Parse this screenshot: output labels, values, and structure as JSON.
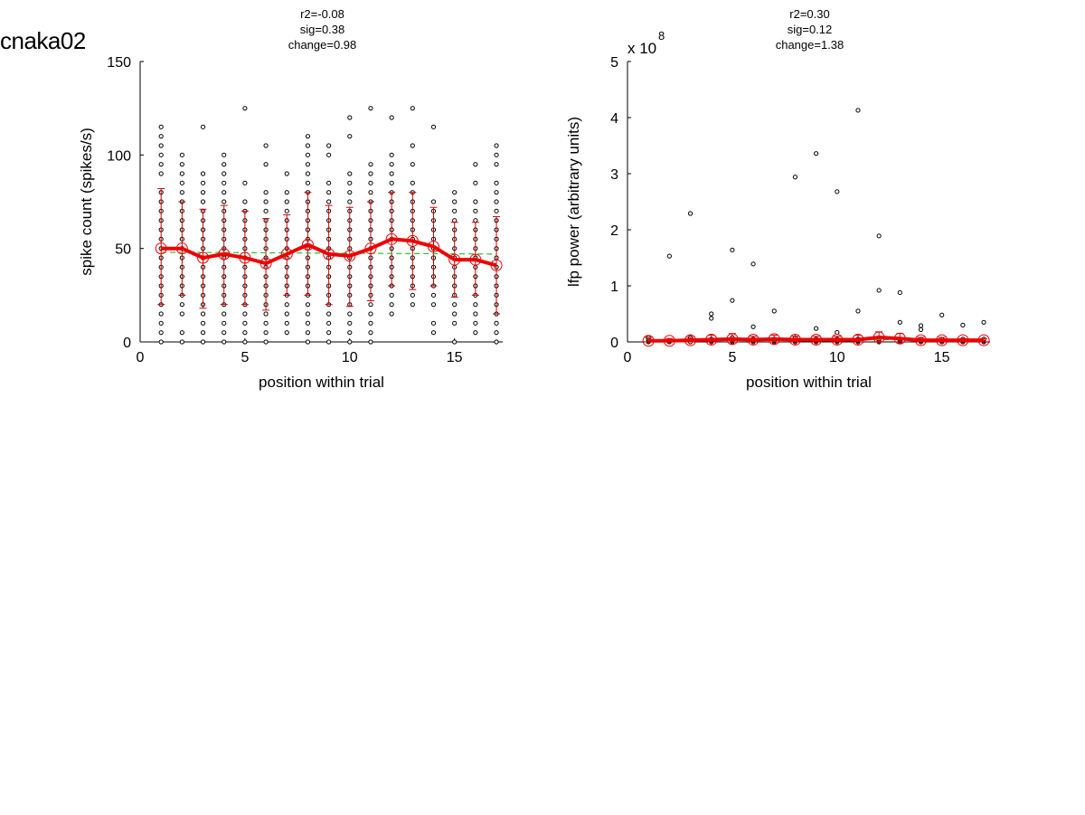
{
  "figure_title": "cnaka02",
  "colors": {
    "mean_line": "#ee0000",
    "error_bar": "#cc0000",
    "trial_point": "#000000",
    "fit_line": "#33bb33"
  },
  "chart_data": [
    {
      "type": "scatter",
      "title_lines": [
        "r2=-0.08",
        "sig=0.38",
        "change=0.98"
      ],
      "xlabel": "position within trial",
      "ylabel": "spike count (spikes/s)",
      "exponent_label": "",
      "exponent_power": "",
      "xlim": [
        0,
        17.3
      ],
      "ylim": [
        0,
        150
      ],
      "xticks": [
        "0",
        "5",
        "10",
        "15"
      ],
      "yticks": [
        "0",
        "50",
        "100",
        "150"
      ],
      "x": [
        1,
        2,
        3,
        4,
        5,
        6,
        7,
        8,
        9,
        10,
        11,
        12,
        13,
        14,
        15,
        16,
        17
      ],
      "mean": [
        50,
        50,
        45,
        47,
        45,
        42,
        47,
        52,
        47,
        46,
        50,
        55,
        54,
        51,
        44,
        44,
        41
      ],
      "error_low": [
        20,
        25,
        18,
        20,
        20,
        17,
        25,
        25,
        20,
        19,
        22,
        30,
        28,
        30,
        24,
        25,
        15
      ],
      "error_high": [
        82,
        75,
        71,
        73,
        70,
        66,
        68,
        80,
        73,
        72,
        75,
        80,
        80,
        72,
        64,
        64,
        67
      ],
      "fit_line": {
        "style": "dashed",
        "y_start": 48,
        "y_end": 47
      },
      "trial_points": [
        [
          0,
          5,
          10,
          15,
          20,
          25,
          30,
          35,
          40,
          45,
          50,
          55,
          60,
          65,
          70,
          75,
          80,
          90,
          95,
          100,
          105,
          110,
          115
        ],
        [
          0,
          5,
          15,
          20,
          25,
          30,
          35,
          40,
          45,
          50,
          55,
          60,
          65,
          70,
          75,
          80,
          85,
          90,
          95,
          100
        ],
        [
          0,
          5,
          10,
          15,
          20,
          25,
          30,
          35,
          40,
          45,
          50,
          55,
          60,
          65,
          70,
          75,
          80,
          85,
          90,
          115
        ],
        [
          0,
          5,
          10,
          15,
          20,
          25,
          30,
          35,
          40,
          45,
          50,
          55,
          60,
          65,
          70,
          75,
          80,
          85,
          90,
          95,
          100
        ],
        [
          0,
          5,
          10,
          15,
          20,
          25,
          30,
          35,
          40,
          45,
          50,
          55,
          60,
          65,
          70,
          75,
          85,
          125
        ],
        [
          0,
          5,
          10,
          15,
          20,
          25,
          30,
          35,
          40,
          45,
          50,
          55,
          60,
          65,
          70,
          75,
          80,
          95,
          105
        ],
        [
          5,
          10,
          15,
          20,
          25,
          30,
          35,
          40,
          45,
          50,
          55,
          60,
          65,
          70,
          75,
          80,
          90
        ],
        [
          0,
          5,
          10,
          15,
          20,
          25,
          30,
          35,
          40,
          45,
          50,
          55,
          60,
          65,
          70,
          75,
          80,
          85,
          90,
          95,
          100,
          105,
          110
        ],
        [
          0,
          5,
          10,
          15,
          20,
          25,
          30,
          35,
          40,
          45,
          50,
          55,
          60,
          65,
          70,
          75,
          80,
          85,
          100,
          105
        ],
        [
          0,
          5,
          10,
          15,
          20,
          25,
          30,
          35,
          40,
          45,
          50,
          55,
          60,
          65,
          70,
          75,
          80,
          85,
          90,
          110,
          120
        ],
        [
          0,
          5,
          10,
          15,
          20,
          25,
          30,
          35,
          40,
          45,
          50,
          55,
          60,
          65,
          70,
          75,
          80,
          85,
          90,
          95,
          125
        ],
        [
          15,
          20,
          25,
          30,
          35,
          40,
          45,
          50,
          55,
          60,
          65,
          70,
          75,
          80,
          85,
          90,
          95,
          100,
          120
        ],
        [
          20,
          25,
          30,
          35,
          40,
          45,
          50,
          55,
          60,
          65,
          70,
          75,
          80,
          85,
          95,
          105,
          125
        ],
        [
          5,
          10,
          20,
          25,
          30,
          35,
          40,
          45,
          50,
          55,
          60,
          65,
          70,
          75,
          115
        ],
        [
          0,
          10,
          15,
          20,
          25,
          30,
          35,
          40,
          45,
          50,
          55,
          60,
          65,
          70,
          75,
          80
        ],
        [
          5,
          10,
          15,
          20,
          25,
          30,
          35,
          40,
          45,
          50,
          55,
          60,
          65,
          70,
          75,
          85,
          95
        ],
        [
          0,
          5,
          10,
          15,
          20,
          25,
          30,
          35,
          40,
          45,
          50,
          55,
          60,
          65,
          70,
          75,
          80,
          85,
          95,
          100,
          105
        ]
      ]
    },
    {
      "type": "scatter",
      "title_lines": [
        "r2=0.30",
        "sig=0.12",
        "change=1.38"
      ],
      "xlabel": "position within trial",
      "ylabel": "lfp power (arbitrary units)",
      "exponent_label": "x 10",
      "exponent_power": "8",
      "xlim": [
        0,
        17.3
      ],
      "ylim": [
        0,
        5
      ],
      "xticks": [
        "0",
        "5",
        "10",
        "15"
      ],
      "yticks": [
        "0",
        "1",
        "2",
        "3",
        "4",
        "5"
      ],
      "x": [
        1,
        2,
        3,
        4,
        5,
        6,
        7,
        8,
        9,
        10,
        11,
        12,
        13,
        14,
        15,
        16,
        17
      ],
      "mean": [
        0.02,
        0.02,
        0.03,
        0.04,
        0.05,
        0.04,
        0.05,
        0.04,
        0.04,
        0.04,
        0.04,
        0.08,
        0.06,
        0.03,
        0.03,
        0.03,
        0.03
      ],
      "error_low": [
        0.0,
        0.0,
        0.0,
        0.0,
        0.0,
        0.0,
        0.0,
        0.0,
        0.0,
        0.0,
        0.0,
        0.0,
        0.0,
        0.0,
        0.0,
        0.0,
        0.0
      ],
      "error_high": [
        0.08,
        0.06,
        0.08,
        0.12,
        0.15,
        0.1,
        0.12,
        0.1,
        0.1,
        0.1,
        0.12,
        0.18,
        0.15,
        0.08,
        0.08,
        0.06,
        0.06
      ],
      "fit_line": {
        "style": "dashed",
        "y_start": 0.02,
        "y_end": 0.05
      },
      "trial_points": [
        [
          0,
          0.02,
          0.05,
          0.08
        ],
        [
          0,
          0.02,
          1.53
        ],
        [
          0,
          0.05,
          0.08,
          2.29
        ],
        [
          0,
          0.02,
          0.05,
          0.42,
          0.5
        ],
        [
          0,
          0.02,
          0.05,
          0.08,
          0.74,
          1.64
        ],
        [
          0,
          0.02,
          0.05,
          0.27,
          1.39
        ],
        [
          0,
          0.02,
          0.05,
          0.55
        ],
        [
          0,
          0.02,
          0.05,
          0.08,
          2.94
        ],
        [
          0,
          0.02,
          0.05,
          0.24,
          3.36
        ],
        [
          0,
          0.02,
          0.05,
          0.17,
          2.68
        ],
        [
          0,
          0.02,
          0.05,
          0.55,
          4.13
        ],
        [
          0,
          0.02,
          0.05,
          0.92,
          1.89
        ],
        [
          0,
          0.02,
          0.05,
          0.35,
          0.88
        ],
        [
          0,
          0.02,
          0.05,
          0.22,
          0.29
        ],
        [
          0,
          0.02,
          0.05,
          0.48
        ],
        [
          0,
          0.02,
          0.05,
          0.3
        ],
        [
          0,
          0.02,
          0.05,
          0.35
        ]
      ]
    }
  ]
}
